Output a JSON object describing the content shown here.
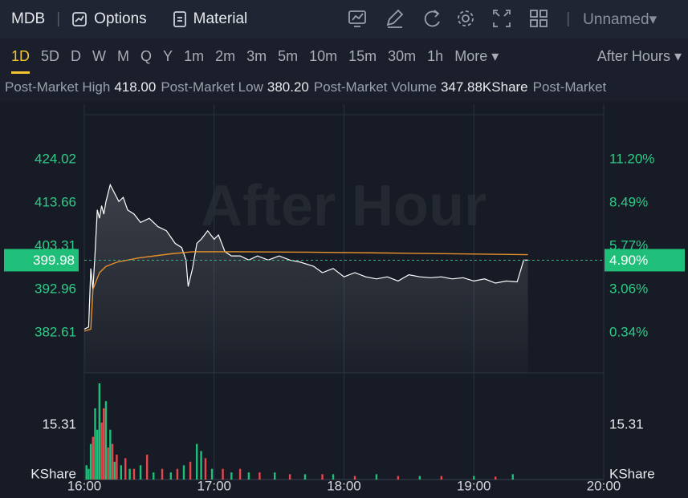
{
  "toolbar": {
    "symbol": "MDB",
    "options": "Options",
    "material": "Material",
    "layout": "Unnamed"
  },
  "tabs": [
    "1D",
    "5D",
    "D",
    "W",
    "M",
    "Q",
    "Y",
    "1m",
    "2m",
    "3m",
    "5m",
    "10m",
    "15m",
    "30m",
    "1h",
    "More"
  ],
  "active_tab": 0,
  "session": "After Hours",
  "stats": [
    {
      "label": "Post-Market High",
      "value": "418.00"
    },
    {
      "label": "Post-Market Low",
      "value": "380.20"
    },
    {
      "label": "Post-Market Volume",
      "value": "347.88KShare"
    },
    {
      "label": "Post-Market"
    }
  ],
  "chart_data": [
    {
      "type": "line",
      "watermark": "After Hour",
      "ylim": [
        373.04,
        437.25
      ],
      "yticks": [
        382.61,
        392.96,
        403.31,
        413.66,
        424.02
      ],
      "y2lim": [
        -2.17,
        14.67
      ],
      "y2ticks": [
        {
          "value": 0.34,
          "label": "0.34%"
        },
        {
          "value": 3.06,
          "label": "3.06%"
        },
        {
          "value": 5.77,
          "label": "5.77%"
        },
        {
          "value": 8.49,
          "label": "8.49%"
        },
        {
          "value": 11.2,
          "label": "11.20%"
        }
      ],
      "last_price": 399.98,
      "last_change": {
        "value": 4.9,
        "label": "4.90%"
      },
      "tag_color": "#1fbf7a",
      "series": [
        {
          "color": "#ffffff",
          "x": [
            960,
            962,
            963,
            964,
            965,
            966,
            967,
            968,
            969,
            970,
            972,
            974,
            976,
            978,
            980,
            983,
            986,
            990,
            994,
            998,
            1002,
            1005,
            1007,
            1008,
            1010,
            1012,
            1014,
            1017,
            1020,
            1022,
            1025,
            1028,
            1032,
            1036,
            1040,
            1045,
            1050,
            1055,
            1060,
            1066,
            1070,
            1075,
            1080,
            1085,
            1090,
            1095,
            1100,
            1105,
            1110,
            1115,
            1120,
            1125,
            1130,
            1135,
            1140,
            1145,
            1150,
            1155,
            1160,
            1163,
            1165
          ],
          "values": [
            383.5,
            384,
            398,
            393,
            402,
            412,
            410,
            413,
            411,
            414,
            418,
            416,
            414,
            415,
            412,
            411,
            409,
            410,
            408,
            407,
            404,
            403,
            400,
            393.7,
            398,
            404,
            405,
            407,
            405,
            406,
            402,
            401,
            401,
            400,
            401,
            400,
            401,
            400,
            399.5,
            398.5,
            397,
            398,
            396,
            397,
            396,
            395.5,
            396,
            395,
            396.5,
            396,
            395.8,
            396,
            395.5,
            395.8,
            395,
            395.5,
            394.5,
            395,
            394.8,
            399.98,
            399.98
          ]
        },
        {
          "color": "#e8912c",
          "x": [
            960,
            963,
            964,
            967,
            970,
            975,
            985,
            1000,
            1010,
            1030,
            1060,
            1100,
            1165
          ],
          "values": [
            383,
            383.5,
            393,
            397,
            398.5,
            399.5,
            400.5,
            401.5,
            402,
            402,
            401.9,
            401.7,
            401.3
          ]
        }
      ]
    },
    {
      "type": "bar",
      "xlim": [
        960,
        1200
      ],
      "xticks": [
        {
          "value": 960,
          "label": "16:00"
        },
        {
          "value": 1020,
          "label": "17:00"
        },
        {
          "value": 1080,
          "label": "18:00"
        },
        {
          "value": 1140,
          "label": "19:00"
        },
        {
          "value": 1200,
          "label": "20:00"
        }
      ],
      "ylim": [
        0,
        28.8
      ],
      "yticks": [
        {
          "value": 0,
          "label": "KShare"
        },
        15.31
      ],
      "x": [
        961,
        962,
        963,
        964,
        965,
        966,
        967,
        968,
        969,
        970,
        971,
        972,
        973,
        974,
        975,
        977,
        979,
        981,
        983,
        986,
        989,
        992,
        996,
        1000,
        1003,
        1006,
        1009,
        1012,
        1014,
        1016,
        1019,
        1024,
        1028,
        1032,
        1036,
        1041,
        1048,
        1055,
        1062,
        1070,
        1075,
        1085,
        1095,
        1105,
        1115,
        1125,
        1140,
        1150,
        1158
      ],
      "values": [
        4,
        3,
        10,
        12,
        20,
        14,
        27,
        16,
        20,
        22,
        9,
        14,
        10,
        5,
        7,
        4,
        6,
        3,
        3,
        4,
        7,
        2,
        3,
        2,
        3,
        4,
        5,
        10,
        8,
        6,
        3,
        3,
        2,
        3,
        2,
        2,
        2,
        1.5,
        1.5,
        1.5,
        1.5,
        1,
        1.5,
        1,
        1,
        1,
        1,
        0.8,
        1.5
      ],
      "colors": [
        "#1fbf7a",
        "#1fbf7a",
        "#1fbf7a",
        "#e5484d",
        "#1fbf7a",
        "#1fbf7a",
        "#1fbf7a",
        "#e5484d",
        "#e5484d",
        "#1fbf7a",
        "#e5484d",
        "#1fbf7a",
        "#e5484d",
        "#1fbf7a",
        "#e5484d",
        "#1fbf7a",
        "#e5484d",
        "#1fbf7a",
        "#e5484d",
        "#1fbf7a",
        "#e5484d",
        "#1fbf7a",
        "#e5484d",
        "#1fbf7a",
        "#e5484d",
        "#1fbf7a",
        "#e5484d",
        "#1fbf7a",
        "#1fbf7a",
        "#e5484d",
        "#1fbf7a",
        "#e5484d",
        "#1fbf7a",
        "#e5484d",
        "#1fbf7a",
        "#e5484d",
        "#1fbf7a",
        "#e5484d",
        "#1fbf7a",
        "#e5484d",
        "#1fbf7a",
        "#e5484d",
        "#1fbf7a",
        "#e5484d",
        "#1fbf7a",
        "#e5484d",
        "#1fbf7a",
        "#e5484d",
        "#1fbf7a"
      ]
    }
  ]
}
